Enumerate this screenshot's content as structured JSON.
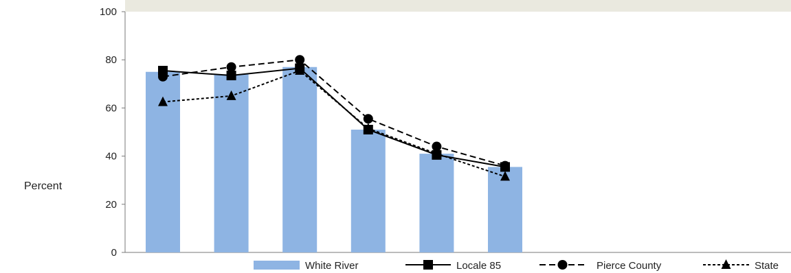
{
  "chart_data": {
    "type": "bar",
    "title": "",
    "ylabel": "Percent",
    "xlabel": "",
    "ylim": [
      0,
      100
    ],
    "yticks": [
      0,
      20,
      40,
      60,
      80,
      100
    ],
    "grid": false,
    "legend_position": "bottom",
    "header_band_color": "#eae9df",
    "category_count": 6,
    "bars": {
      "name": "White River",
      "color": "#8eb4e3",
      "values": [
        75,
        74,
        77,
        51,
        41,
        35.5
      ]
    },
    "series": [
      {
        "name": "Locale 85",
        "style": "solid",
        "marker": "square",
        "color": "#000000",
        "values": [
          75.5,
          73.5,
          76.5,
          51,
          40.5,
          35.5
        ]
      },
      {
        "name": "Pierce County",
        "style": "dashed",
        "marker": "circle",
        "color": "#000000",
        "values": [
          73,
          77,
          80,
          55.5,
          44,
          36
        ]
      },
      {
        "name": "State",
        "style": "dotted",
        "marker": "triangle",
        "color": "#000000",
        "values": [
          62.5,
          65,
          75.5,
          51.5,
          41,
          31.5
        ]
      }
    ]
  }
}
